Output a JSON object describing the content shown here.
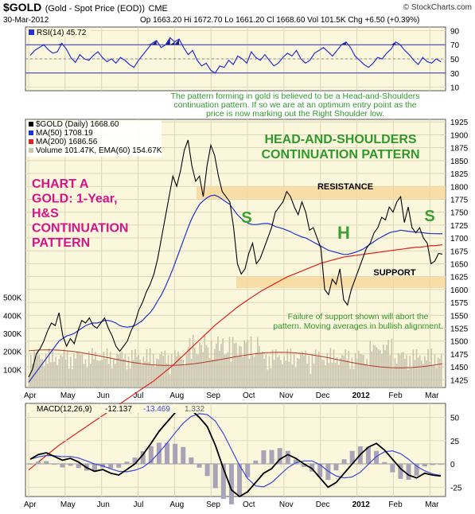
{
  "header": {
    "symbol": "$GOLD",
    "description": "(Gold - Spot Price (EOD))",
    "exchange": "CME",
    "date": "30-Mar-2012",
    "ohlc": "Op 1663.20  Hi 1672.70  Lo 1661.20  Cl 1668.60  Vol 101.5K  Chg +6.50 (+0.39%)",
    "copyright": "© StockCharts.com"
  },
  "rsi_panel": {
    "legend": "RSI(14) 45.72",
    "ticks": [
      "90",
      "70",
      "50",
      "30",
      "10"
    ],
    "note_lines": [
      "The pattern forming in gold is believed to be a Head-and-Shoulders",
      "continuation pattern. If so we are at an optimum entry point as the",
      "price is now marking out the Right Shoulder low."
    ]
  },
  "price_panel": {
    "legend": [
      "$GOLD (Daily) 1668.60",
      "MA(50) 1708.19",
      "MA(200) 1686.56",
      "Volume 101.47K, EMA(60) 154.67K"
    ],
    "price_ticks": [
      "1925",
      "1900",
      "1875",
      "1850",
      "1825",
      "1800",
      "1775",
      "1750",
      "1725",
      "1700",
      "1675",
      "1650",
      "1625",
      "1600",
      "1575",
      "1550",
      "1525",
      "1500",
      "1475",
      "1450",
      "1425"
    ],
    "volume_ticks": [
      "500K",
      "400K",
      "300K",
      "200K",
      "100K"
    ],
    "title_lines": [
      "HEAD-AND-SHOULDERS",
      "CONTINUATION PATTERN"
    ],
    "chart_label_lines": [
      "CHART A",
      "GOLD: 1-Year,",
      "H&S",
      "CONTINUATION",
      "PATTERN"
    ],
    "resistance_label": "RESISTANCE",
    "support_label": "SUPPORT",
    "pattern_letters": [
      "S",
      "H",
      "S"
    ],
    "failure_note_lines": [
      "Failure of support shown will abort the",
      "pattern. Moving averages in bullish alignment."
    ]
  },
  "macd_panel": {
    "legend_prefix": "MACD(12,26,9)",
    "macd_value": "-12.137",
    "signal_value": "-13.469",
    "hist_value": "1.332",
    "ticks": [
      "50",
      "25",
      "0",
      "-25"
    ]
  },
  "x_axis_labels": [
    "Apr",
    "May",
    "Jun",
    "Jul",
    "Aug",
    "Sep",
    "Oct",
    "Nov",
    "Dec",
    "2012",
    "Feb",
    "Mar"
  ],
  "colors": {
    "panel_bg": "#fbf7dc",
    "price_line": "#000000",
    "ma50": "#1f34c9",
    "ma200": "#e0201a",
    "rsi_line": "#2a2fd0",
    "volume_bar": "#c9c3b0",
    "band": "#f7d594",
    "note_green": "#2f9a2a",
    "title_green": "#2f9a2a",
    "label_magenta": "#d4148a",
    "label_blue": "#3a3ad0",
    "pattern_green": "#3aa02f"
  },
  "chart_data": {
    "type": "line",
    "title": "$GOLD (Gold - Spot Price (EOD)) CME",
    "months": [
      "Apr",
      "May",
      "Jun",
      "Jul",
      "Aug",
      "Sep",
      "Oct",
      "Nov",
      "Dec",
      "2012",
      "Feb",
      "Mar"
    ],
    "price_ylim": [
      1410,
      1930
    ],
    "resistance_zone": [
      1775,
      1800
    ],
    "support_zone": [
      1603,
      1625
    ],
    "series": [
      {
        "name": "$GOLD (Daily)",
        "values": [
          1430,
          1445,
          1475,
          1485,
          1500,
          1520,
          1535,
          1530,
          1555,
          1510,
          1490,
          1505,
          1495,
          1520,
          1540,
          1535,
          1545,
          1530,
          1525,
          1535,
          1545,
          1525,
          1510,
          1490,
          1480,
          1490,
          1500,
          1520,
          1535,
          1560,
          1575,
          1595,
          1610,
          1630,
          1660,
          1700,
          1740,
          1780,
          1820,
          1800,
          1830,
          1870,
          1890,
          1840,
          1810,
          1820,
          1780,
          1840,
          1880,
          1860,
          1820,
          1790,
          1780,
          1770,
          1720,
          1650,
          1630,
          1640,
          1670,
          1690,
          1650,
          1660,
          1680,
          1700,
          1720,
          1750,
          1760,
          1770,
          1790,
          1780,
          1760,
          1745,
          1770,
          1750,
          1715,
          1720,
          1700,
          1680,
          1600,
          1590,
          1620,
          1610,
          1640,
          1580,
          1570,
          1600,
          1620,
          1640,
          1660,
          1680,
          1690,
          1710,
          1720,
          1740,
          1735,
          1760,
          1750,
          1770,
          1780,
          1730,
          1760,
          1720,
          1710,
          1720,
          1700,
          1690,
          1650,
          1655,
          1670,
          1668.6
        ]
      },
      {
        "name": "MA(50)",
        "values": [
          1420,
          1430,
          1440,
          1450,
          1460,
          1470,
          1480,
          1490,
          1500,
          1505,
          1510,
          1512,
          1515,
          1520,
          1525,
          1530,
          1533,
          1535,
          1535,
          1537,
          1540,
          1540,
          1538,
          1535,
          1530,
          1528,
          1527,
          1528,
          1530,
          1535,
          1540,
          1548,
          1555,
          1565,
          1578,
          1590,
          1605,
          1622,
          1640,
          1660,
          1680,
          1700,
          1720,
          1738,
          1752,
          1765,
          1772,
          1778,
          1782,
          1783,
          1780,
          1775,
          1770,
          1765,
          1755,
          1745,
          1738,
          1732,
          1728,
          1726,
          1726,
          1727,
          1728,
          1728,
          1726,
          1722,
          1720,
          1718,
          1715,
          1712,
          1708,
          1705,
          1702,
          1700,
          1696,
          1692,
          1688,
          1684,
          1680,
          1676,
          1674,
          1672,
          1670,
          1668,
          1668,
          1670,
          1672,
          1675,
          1678,
          1683,
          1688,
          1693,
          1698,
          1702,
          1706,
          1710,
          1712,
          1713,
          1715,
          1714,
          1713,
          1712,
          1711,
          1711,
          1710,
          1709,
          1708.5,
          1708.3,
          1708.2,
          1708.19
        ]
      },
      {
        "name": "MA(200)",
        "values": [
          1250,
          1256,
          1262,
          1268,
          1274,
          1280,
          1286,
          1292,
          1298,
          1303,
          1308,
          1313,
          1318,
          1323,
          1328,
          1333,
          1338,
          1343,
          1348,
          1353,
          1358,
          1363,
          1368,
          1373,
          1378,
          1383,
          1388,
          1393,
          1398,
          1403,
          1408,
          1413,
          1418,
          1423,
          1429,
          1435,
          1441,
          1447,
          1453,
          1460,
          1467,
          1474,
          1481,
          1488,
          1495,
          1502,
          1509,
          1516,
          1523,
          1530,
          1536,
          1542,
          1548,
          1554,
          1560,
          1566,
          1571,
          1576,
          1581,
          1586,
          1591,
          1596,
          1600,
          1604,
          1608,
          1612,
          1616,
          1620,
          1624,
          1627,
          1630,
          1633,
          1636,
          1639,
          1642,
          1645,
          1648,
          1651,
          1653,
          1655,
          1657,
          1659,
          1661,
          1663,
          1664,
          1665,
          1666,
          1667,
          1668,
          1669,
          1670,
          1671,
          1672,
          1673,
          1674,
          1675,
          1676,
          1677,
          1678,
          1679,
          1680,
          1681,
          1682,
          1682,
          1683,
          1684,
          1685,
          1685,
          1686,
          1686.56
        ]
      }
    ]
  }
}
